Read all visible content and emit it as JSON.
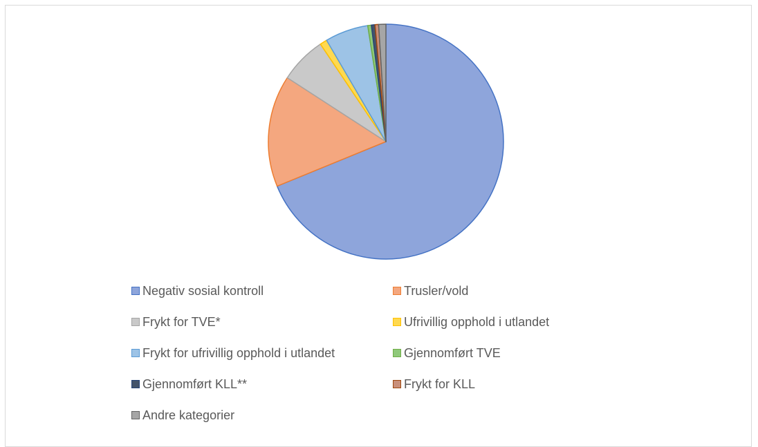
{
  "chart_data": {
    "type": "pie",
    "title": "",
    "legend_position": "bottom",
    "slices": [
      {
        "label": "Negativ sosial kontroll",
        "value": 69.5,
        "fill": "#8ea5db",
        "stroke": "#4472c4"
      },
      {
        "label": "Trusler/vold",
        "value": 15.5,
        "fill": "#f4a77f",
        "stroke": "#ed7d31"
      },
      {
        "label": "Frykt for TVE*",
        "value": 6.5,
        "fill": "#c9c9c9",
        "stroke": "#a5a5a5"
      },
      {
        "label": "Ufrivillig opphold i utlandet",
        "value": 1.0,
        "fill": "#ffd94f",
        "stroke": "#ffc000"
      },
      {
        "label": "Frykt for ufrivillig opphold i utlandet",
        "value": 6.0,
        "fill": "#9dc3e6",
        "stroke": "#5b9bd5"
      },
      {
        "label": "Gjennomført TVE",
        "value": 0.5,
        "fill": "#8fc97a",
        "stroke": "#70ad47"
      },
      {
        "label": "Gjennomført KLL**",
        "value": 0.5,
        "fill": "#44546a",
        "stroke": "#264478"
      },
      {
        "label": "Frykt for KLL",
        "value": 0.5,
        "fill": "#c98f7a",
        "stroke": "#9e480e"
      },
      {
        "label": "Andre kategorier",
        "value": 1.0,
        "fill": "#a6a6a6",
        "stroke": "#636363"
      }
    ]
  }
}
